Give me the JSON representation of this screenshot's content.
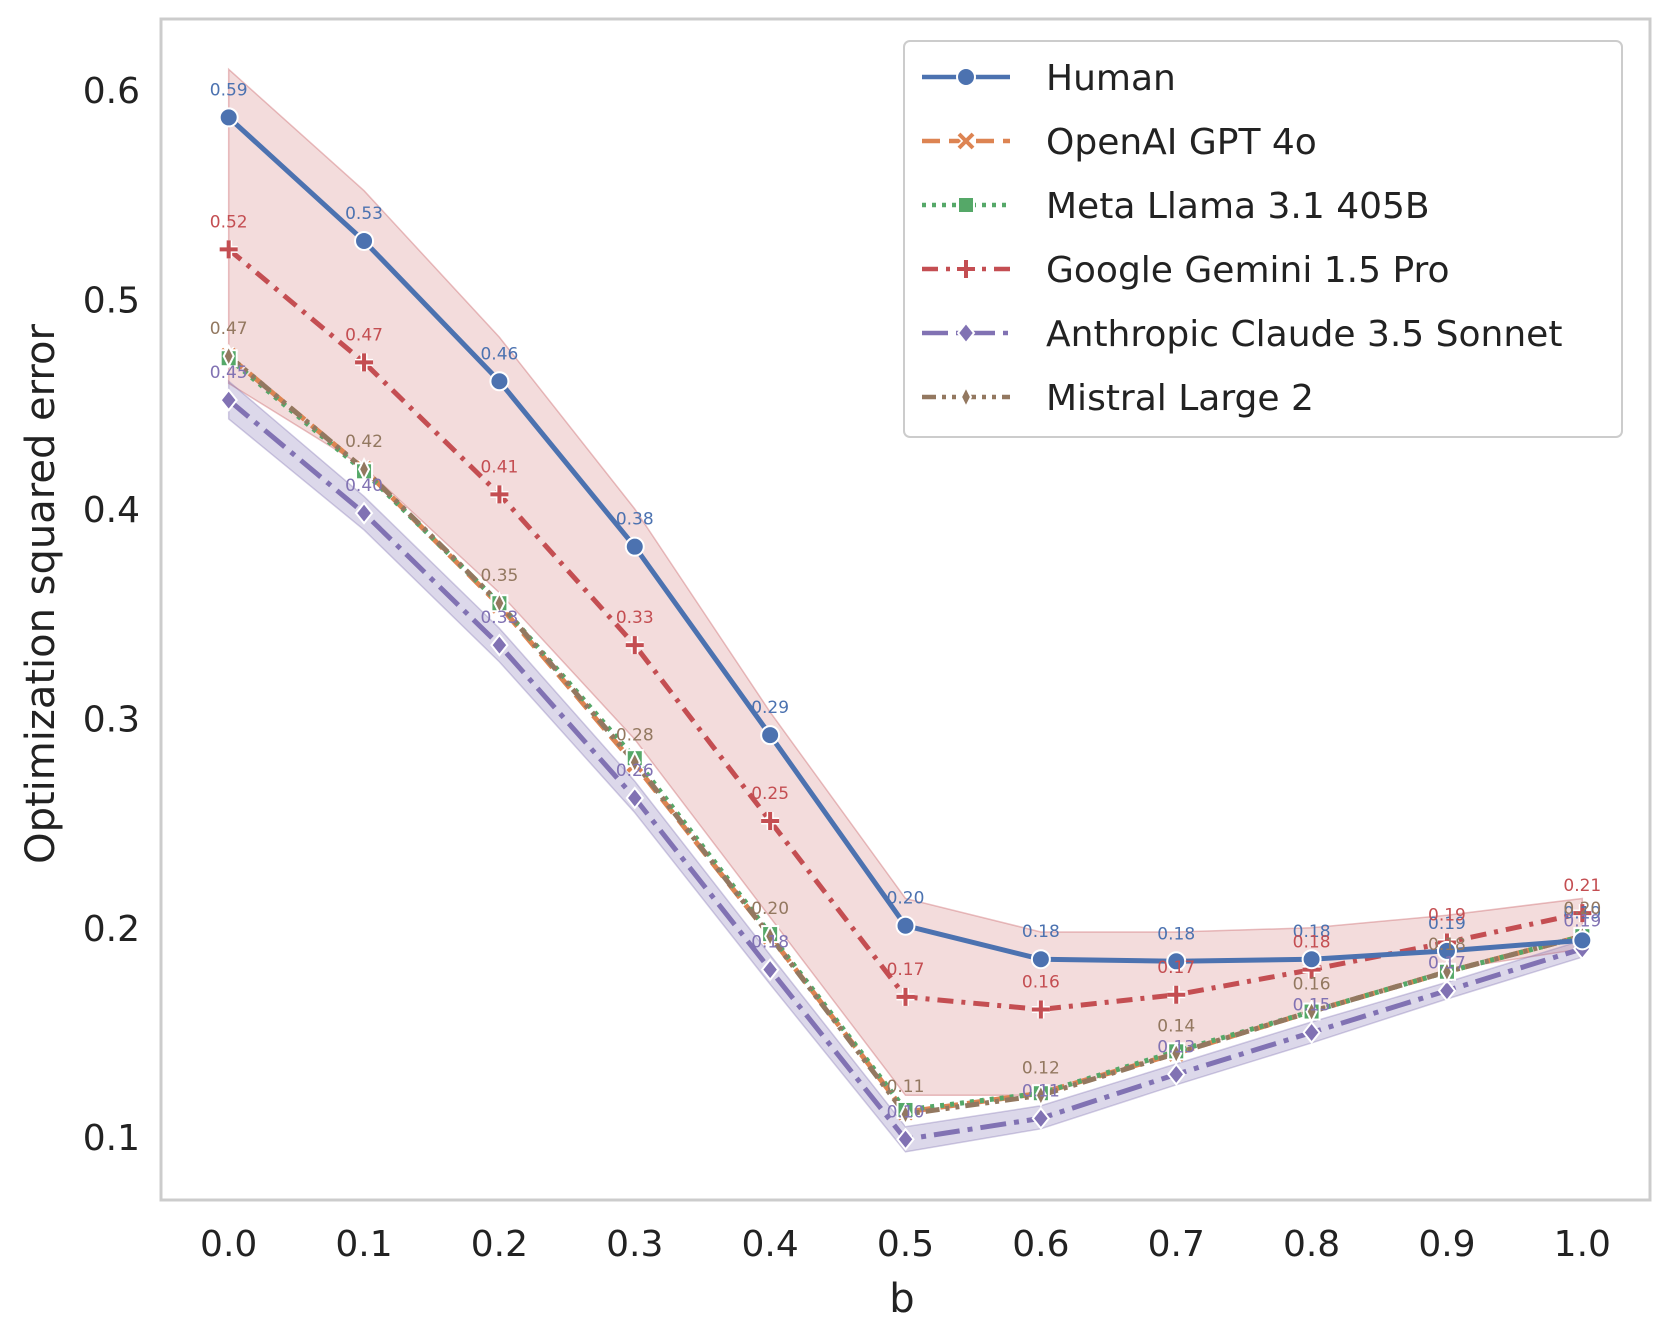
{
  "chart_data": {
    "type": "line",
    "title": "",
    "xlabel": "b",
    "ylabel": "Optimization squared error",
    "x": [
      0.0,
      0.1,
      0.2,
      0.3,
      0.4,
      0.5,
      0.6,
      0.7,
      0.8,
      0.9,
      1.0
    ],
    "x_tick_labels": [
      "0.0",
      "0.1",
      "0.2",
      "0.3",
      "0.4",
      "0.5",
      "0.6",
      "0.7",
      "0.8",
      "0.9",
      "1.0"
    ],
    "y_ticks": [
      0.1,
      0.2,
      0.3,
      0.4,
      0.5,
      0.6
    ],
    "y_tick_labels": [
      "0.1",
      "0.2",
      "0.3",
      "0.4",
      "0.5",
      "0.6"
    ],
    "xlim": [
      -0.05,
      1.05
    ],
    "ylim": [
      0.07,
      0.634
    ],
    "grid": false,
    "legend_position": "top-right",
    "series": [
      {
        "name": "Human",
        "color": "#4c72b0",
        "dash": "solid",
        "marker": "circle",
        "values": [
          0.587,
          0.528,
          0.461,
          0.382,
          0.292,
          0.201,
          0.185,
          0.184,
          0.185,
          0.189,
          0.194
        ],
        "labels": [
          "0.59",
          "0.53",
          "0.46",
          "0.38",
          "0.29",
          "0.20",
          "0.18",
          "0.18",
          "0.18",
          "0.19",
          "0.19"
        ],
        "band_low": [
          0.46,
          0.42,
          0.36,
          0.29,
          0.205,
          0.12,
          0.12,
          0.14,
          0.16,
          0.18,
          0.19
        ],
        "band_high": [
          0.61,
          0.552,
          0.482,
          0.4,
          0.303,
          0.214,
          0.198,
          0.198,
          0.2,
          0.206,
          0.214
        ],
        "band_color": "#c44e52"
      },
      {
        "name": "OpenAI GPT 4o",
        "color": "#dd8452",
        "dash": "dashed",
        "marker": "x",
        "values": [
          0.473,
          0.419,
          0.354,
          0.278,
          0.196,
          0.112,
          0.121,
          0.14,
          0.16,
          0.179,
          0.196
        ],
        "labels": [],
        "band_low": [],
        "band_high": [],
        "band_color": ""
      },
      {
        "name": "Meta Llama 3.1 405B",
        "color": "#55a868",
        "dash": "dotted",
        "marker": "square",
        "values": [
          0.472,
          0.418,
          0.355,
          0.281,
          0.197,
          0.113,
          0.121,
          0.141,
          0.16,
          0.179,
          0.196
        ],
        "labels": [],
        "band_low": [],
        "band_high": [],
        "band_color": ""
      },
      {
        "name": "Google Gemini 1.5 Pro",
        "color": "#c44e52",
        "dash": "dashdot",
        "marker": "plus",
        "values": [
          0.524,
          0.47,
          0.407,
          0.335,
          0.251,
          0.167,
          0.161,
          0.168,
          0.18,
          0.193,
          0.207
        ],
        "labels": [
          "0.52",
          "0.47",
          "0.41",
          "0.33",
          "0.25",
          "0.17",
          "0.16",
          "0.17",
          "0.18",
          "0.19",
          "0.21"
        ],
        "band_low": [],
        "band_high": [],
        "band_color": ""
      },
      {
        "name": "Anthropic Claude 3.5 Sonnet",
        "color": "#8172b3",
        "dash": "longdashdot",
        "marker": "diamond",
        "values": [
          0.452,
          0.398,
          0.335,
          0.262,
          0.18,
          0.099,
          0.109,
          0.13,
          0.15,
          0.17,
          0.19
        ],
        "labels": [
          "0.45",
          "0.40",
          "0.33",
          "0.26",
          "0.18",
          "0.10",
          "0.11",
          "0.13",
          "0.15",
          "0.17",
          "0.19"
        ],
        "band_low": [
          0.443,
          0.39,
          0.327,
          0.255,
          0.173,
          0.093,
          0.104,
          0.125,
          0.145,
          0.166,
          0.186
        ],
        "band_high": [
          0.461,
          0.406,
          0.343,
          0.27,
          0.187,
          0.105,
          0.115,
          0.135,
          0.155,
          0.174,
          0.194
        ],
        "band_color": "#8172b3"
      },
      {
        "name": "Mistral Large 2",
        "color": "#937860",
        "dash": "dashdotdot",
        "marker": "thin-diamond",
        "values": [
          0.473,
          0.419,
          0.355,
          0.279,
          0.196,
          0.111,
          0.12,
          0.14,
          0.16,
          0.179,
          0.196
        ],
        "labels": [
          "0.47",
          "0.42",
          "0.35",
          "0.28",
          "0.20",
          "0.11",
          "0.12",
          "0.14",
          "0.16",
          "0.18",
          "0.20"
        ],
        "band_low": [],
        "band_high": [],
        "band_color": ""
      }
    ]
  }
}
